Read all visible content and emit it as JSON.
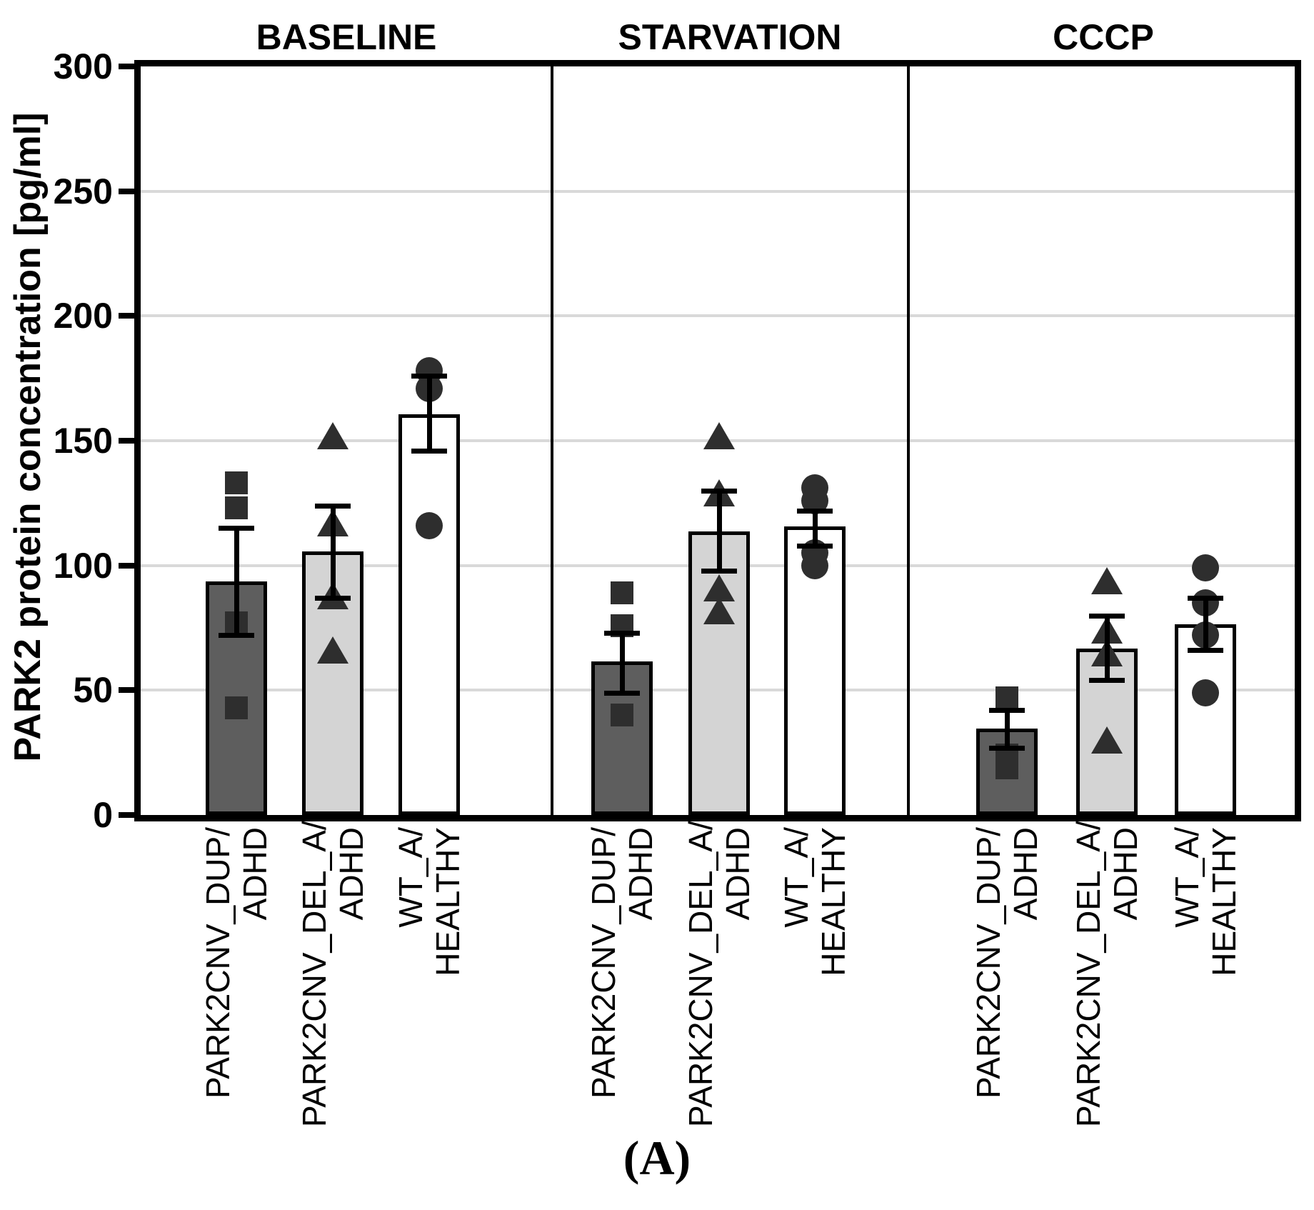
{
  "caption": "(A)",
  "colors": {
    "background": "#ffffff",
    "axis": "#000000",
    "gridline": "#d9d9d9",
    "marker": "#2e2e2e",
    "bar_dup": "#5e5e5e",
    "bar_del": "#d4d4d4",
    "bar_wt": "#ffffff"
  },
  "chart_data": {
    "type": "bar",
    "title": "",
    "xlabel": "",
    "ylabel": "PARK2 protein concentration [pg/ml]",
    "ylim": [
      0,
      300
    ],
    "yticks": [
      0,
      50,
      100,
      150,
      200,
      250,
      300
    ],
    "grid": "horizontal gridlines at 50-unit steps",
    "legend": "none (marker shape + bar shade identify groups)",
    "error_bars": "SEM, with caps",
    "panels": [
      {
        "title": "BASELINE",
        "groups": [
          {
            "label_line1": "PARK2CNV_DUP/",
            "label_line2": "ADHD",
            "marker": "square",
            "bar_color_key": "bar_dup",
            "mean": 93,
            "sem_low": 72,
            "sem_high": 115,
            "points": [
              133,
              123,
              77,
              43
            ]
          },
          {
            "label_line1": "PARK2CNV_DEL_A/",
            "label_line2": "ADHD",
            "marker": "triangle",
            "bar_color_key": "bar_del",
            "mean": 105,
            "sem_low": 87,
            "sem_high": 124,
            "points": [
              152,
              117,
              88,
              66
            ]
          },
          {
            "label_line1": "WT_A/",
            "label_line2": "HEALTHY",
            "marker": "circle",
            "bar_color_key": "bar_wt",
            "mean": 160,
            "sem_low": 146,
            "sem_high": 176,
            "points": [
              178,
              171,
              116
            ]
          }
        ]
      },
      {
        "title": "STARVATION",
        "groups": [
          {
            "label_line1": "PARK2CNV_DUP/",
            "label_line2": "ADHD",
            "marker": "square",
            "bar_color_key": "bar_dup",
            "mean": 61,
            "sem_low": 49,
            "sem_high": 73,
            "points": [
              89,
              76,
              40
            ]
          },
          {
            "label_line1": "PARK2CNV_DEL_A/",
            "label_line2": "ADHD",
            "marker": "triangle",
            "bar_color_key": "bar_del",
            "mean": 113,
            "sem_low": 98,
            "sem_high": 130,
            "points": [
              152,
              129,
              91,
              82
            ]
          },
          {
            "label_line1": "WT_A/",
            "label_line2": "HEALTHY",
            "marker": "circle",
            "bar_color_key": "bar_wt",
            "mean": 115,
            "sem_low": 108,
            "sem_high": 122,
            "points": [
              131,
              126,
              105,
              100
            ]
          }
        ]
      },
      {
        "title": "CCCP",
        "groups": [
          {
            "label_line1": "PARK2CNV_DUP/",
            "label_line2": "ADHD",
            "marker": "square",
            "bar_color_key": "bar_dup",
            "mean": 34,
            "sem_low": 27,
            "sem_high": 42,
            "points": [
              47,
              24,
              19
            ]
          },
          {
            "label_line1": "PARK2CNV_DEL_A/",
            "label_line2": "ADHD",
            "marker": "triangle",
            "bar_color_key": "bar_del",
            "mean": 66,
            "sem_low": 54,
            "sem_high": 80,
            "points": [
              94,
              74,
              65,
              30
            ]
          },
          {
            "label_line1": "WT_A/",
            "label_line2": "HEALTHY",
            "marker": "circle",
            "bar_color_key": "bar_wt",
            "mean": 76,
            "sem_low": 66,
            "sem_high": 87,
            "points": [
              99,
              85,
              72,
              49
            ]
          }
        ]
      }
    ]
  }
}
